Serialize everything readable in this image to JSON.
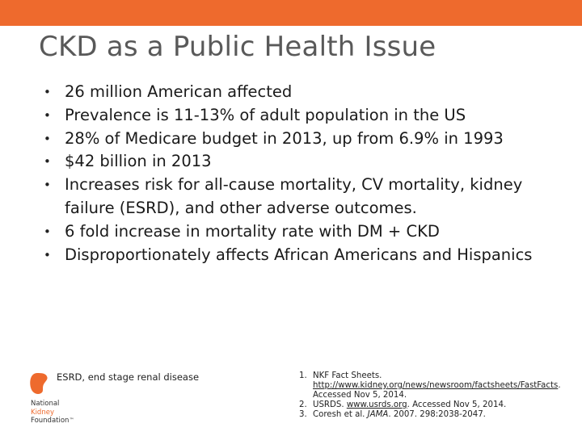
{
  "slide": {
    "title": "CKD as a Public Health Issue",
    "bullet_glyph": "•",
    "bullets": [
      "26 million American affected",
      "Prevalence is 11-13% of adult population in the US",
      "28% of Medicare budget in 2013, up from 6.9% in 1993",
      "$42 billion in 2013",
      "Increases risk for all-cause mortality, CV mortality, kidney failure (ESRD), and other adverse outcomes.",
      "6 fold increase in mortality rate with DM + CKD",
      "Disproportionately affects African Americans and Hispanics"
    ],
    "footnote": "ESRD, end stage renal disease",
    "logo": {
      "line1": "National",
      "line2": "Kidney",
      "line3": "Foundation",
      "trademark": "™"
    },
    "references": [
      {
        "num": "1.",
        "text_before": "NKF Fact Sheets.",
        "link": "http://www.kidney.org/news/newsroom/factsheets/FastFacts",
        "text_after": ". Accessed Nov 5, 2014."
      },
      {
        "num": "2.",
        "text_before": "USRDS.",
        "link": "www.usrds.org",
        "text_after": ". Accessed Nov 5, 2014."
      },
      {
        "num": "3.",
        "text_before": "Coresh et al.",
        "italic": "JAMA",
        "text_after": ". 2007. 298:2038-2047."
      }
    ]
  },
  "colors": {
    "brand_orange": "#ee6a2d",
    "title_gray": "#595959"
  }
}
